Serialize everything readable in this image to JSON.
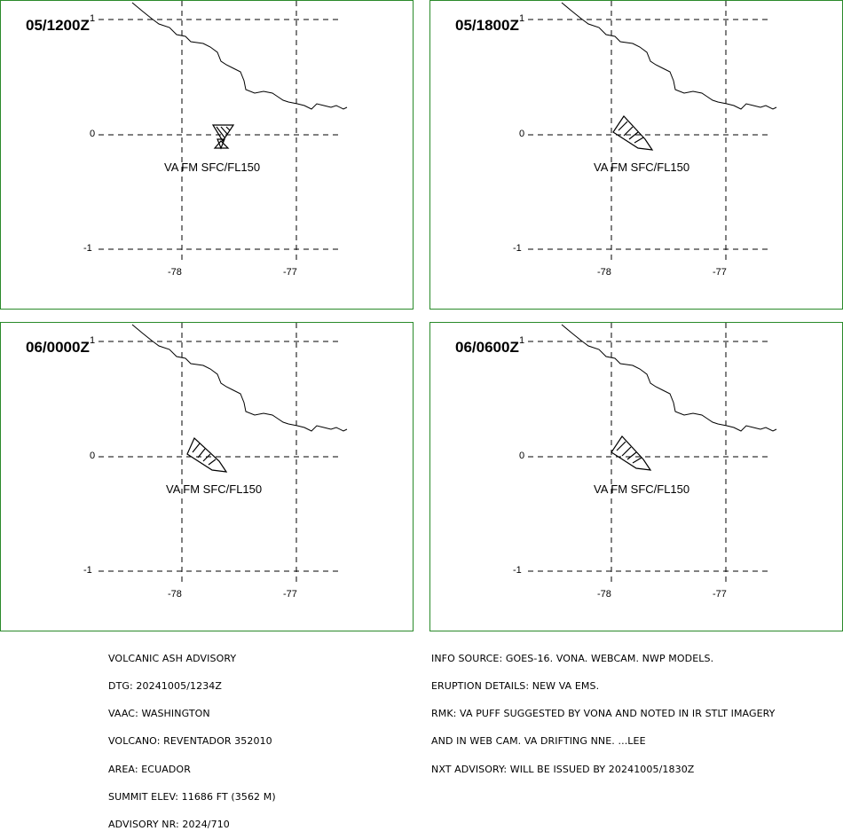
{
  "panels": [
    {
      "time_label": "05/1200Z",
      "va_label": "VA FM SFC/FL150"
    },
    {
      "time_label": "05/1800Z",
      "va_label": "VA FM SFC/FL150"
    },
    {
      "time_label": "06/0000Z",
      "va_label": "VA FM SFC/FL150"
    },
    {
      "time_label": "06/0600Z",
      "va_label": "VA FM SFC/FL150"
    }
  ],
  "map_axes": {
    "lat_labels": [
      "1",
      "0",
      "-1"
    ],
    "lon_labels": [
      "-78",
      "-77"
    ]
  },
  "advisory_left": [
    "VOLCANIC ASH ADVISORY",
    "DTG: 20241005/1234Z",
    "VAAC: WASHINGTON",
    "VOLCANO: REVENTADOR 352010",
    "AREA: ECUADOR",
    "SUMMIT ELEV: 11686 FT (3562 M)",
    "ADVISORY NR: 2024/710"
  ],
  "advisory_right": [
    "INFO SOURCE: GOES-16. VONA. WEBCAM. NWP MODELS.",
    "ERUPTION DETAILS: NEW VA EMS.",
    "RMK: VA PUFF SUGGESTED BY VONA AND NOTED IN IR STLT IMAGERY",
    "AND IN WEB CAM. VA DRIFTING NNE. ...LEE",
    "NXT ADVISORY: WILL BE ISSUED BY 20241005/1830Z"
  ],
  "colors": {
    "frame": "#2a8a2a",
    "line": "#000000"
  }
}
